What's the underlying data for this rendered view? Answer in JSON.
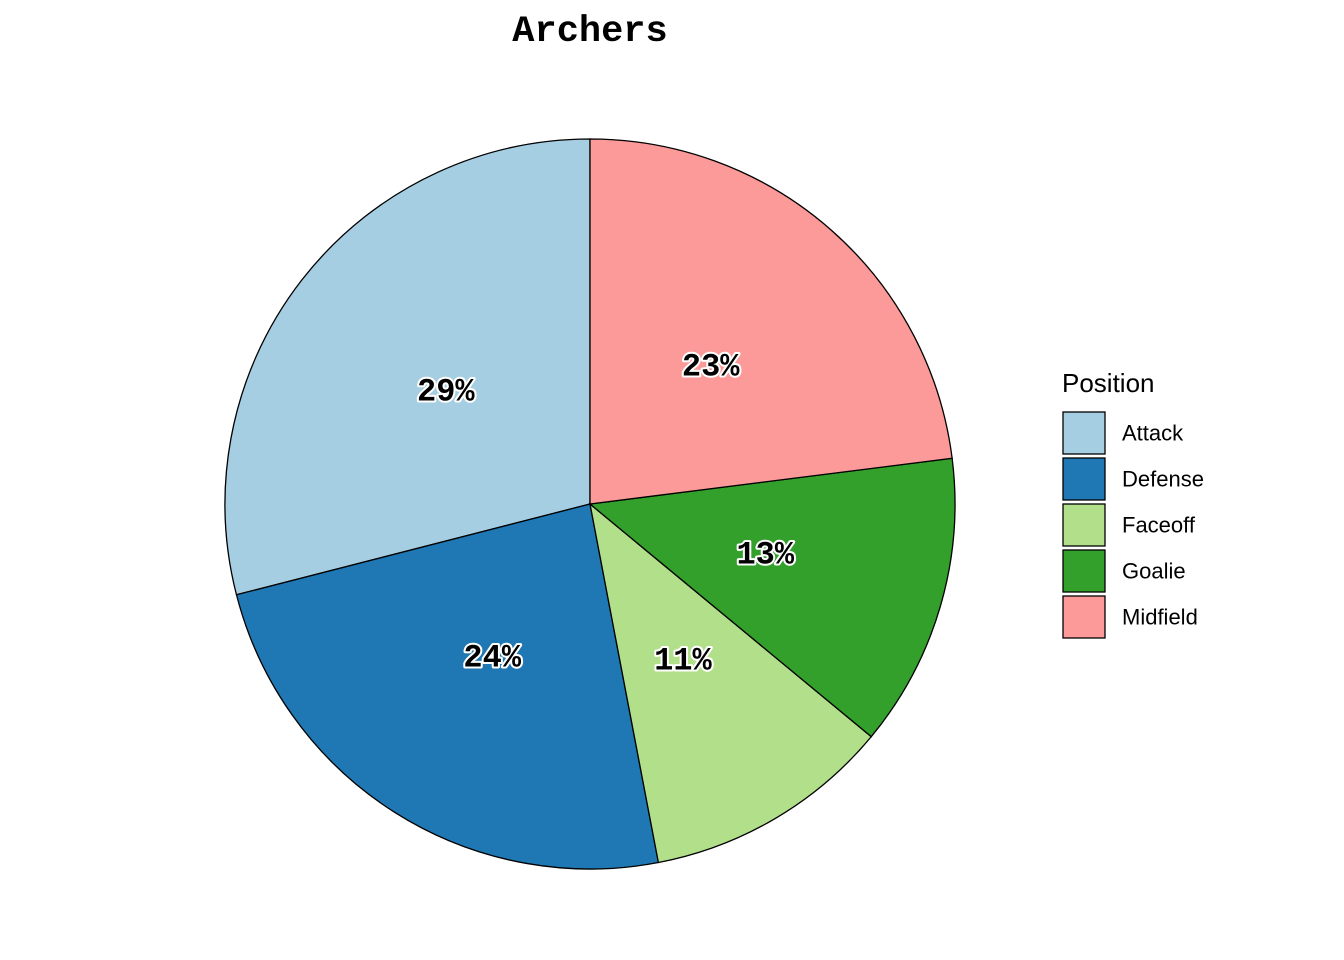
{
  "chart_data": {
    "type": "pie",
    "title": "Archers",
    "legend_title": "Position",
    "legend_position": "right",
    "start": "top",
    "direction": "counterclockwise",
    "slices": [
      {
        "label": "Attack",
        "value": 29,
        "display": "29%",
        "color": "#A6CEE3"
      },
      {
        "label": "Defense",
        "value": 24,
        "display": "24%",
        "color": "#1F78B4"
      },
      {
        "label": "Faceoff",
        "value": 11,
        "display": "11%",
        "color": "#B2DF8A"
      },
      {
        "label": "Goalie",
        "value": 13,
        "display": "13%",
        "color": "#33A02C"
      },
      {
        "label": "Midfield",
        "value": 23,
        "display": "23%",
        "color": "#FB9A99"
      }
    ]
  }
}
